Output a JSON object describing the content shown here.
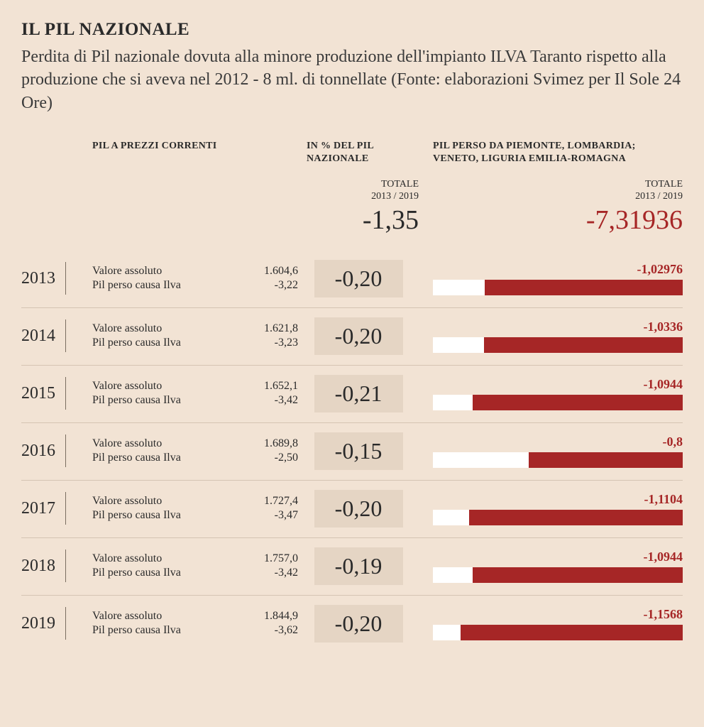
{
  "title": "IL PIL NAZIONALE",
  "subtitle": "Perdita di Pil nazionale dovuta alla minore produzione dell'impianto ILVA Taranto rispetto alla produzione che si aveva nel 2012 - 8 ml. di tonnellate (Fonte: elaborazioni Svimez per Il Sole 24 Ore)",
  "columns": {
    "col1": "PIL A PREZZI CORRENTI",
    "col2": "IN % DEL PIL NAZIONALE",
    "col3": "PIL PERSO DA PIEMONTE, LOMBARDIA; VENETO, LIGURIA EMILIA-ROMAGNA"
  },
  "totals": {
    "label_line1": "TOTALE",
    "label_line2": "2013 / 2019",
    "pct_value": "-1,35",
    "regional_value": "-7,31936"
  },
  "row_labels": {
    "absolute": "Valore assoluto",
    "lost": "Pil perso causa Ilva"
  },
  "colors": {
    "background": "#f2e3d4",
    "bar_fill": "#a62626",
    "bar_track": "#ffffff",
    "pct_box": "#e5d5c4",
    "text": "#2a2a2a",
    "accent_red": "#a62626",
    "divider": "#d5c4b3"
  },
  "bar": {
    "max_abs": 1.3
  },
  "rows": [
    {
      "year": "2013",
      "absolute": "1.604,6",
      "lost": "-3,22",
      "pct": "-0,20",
      "regional": "-1,02976",
      "bar_abs": 1.02976
    },
    {
      "year": "2014",
      "absolute": "1.621,8",
      "lost": "-3,23",
      "pct": "-0,20",
      "regional": "-1,0336",
      "bar_abs": 1.0336
    },
    {
      "year": "2015",
      "absolute": "1.652,1",
      "lost": "-3,42",
      "pct": "-0,21",
      "regional": "-1,0944",
      "bar_abs": 1.0944
    },
    {
      "year": "2016",
      "absolute": "1.689,8",
      "lost": "-2,50",
      "pct": "-0,15",
      "regional": "-0,8",
      "bar_abs": 0.8
    },
    {
      "year": "2017",
      "absolute": "1.727,4",
      "lost": "-3,47",
      "pct": "-0,20",
      "regional": "-1,1104",
      "bar_abs": 1.1104
    },
    {
      "year": "2018",
      "absolute": "1.757,0",
      "lost": "-3,42",
      "pct": "-0,19",
      "regional": "-1,0944",
      "bar_abs": 1.0944
    },
    {
      "year": "2019",
      "absolute": "1.844,9",
      "lost": "-3,62",
      "pct": "-0,20",
      "regional": "-1,1568",
      "bar_abs": 1.1568
    }
  ]
}
